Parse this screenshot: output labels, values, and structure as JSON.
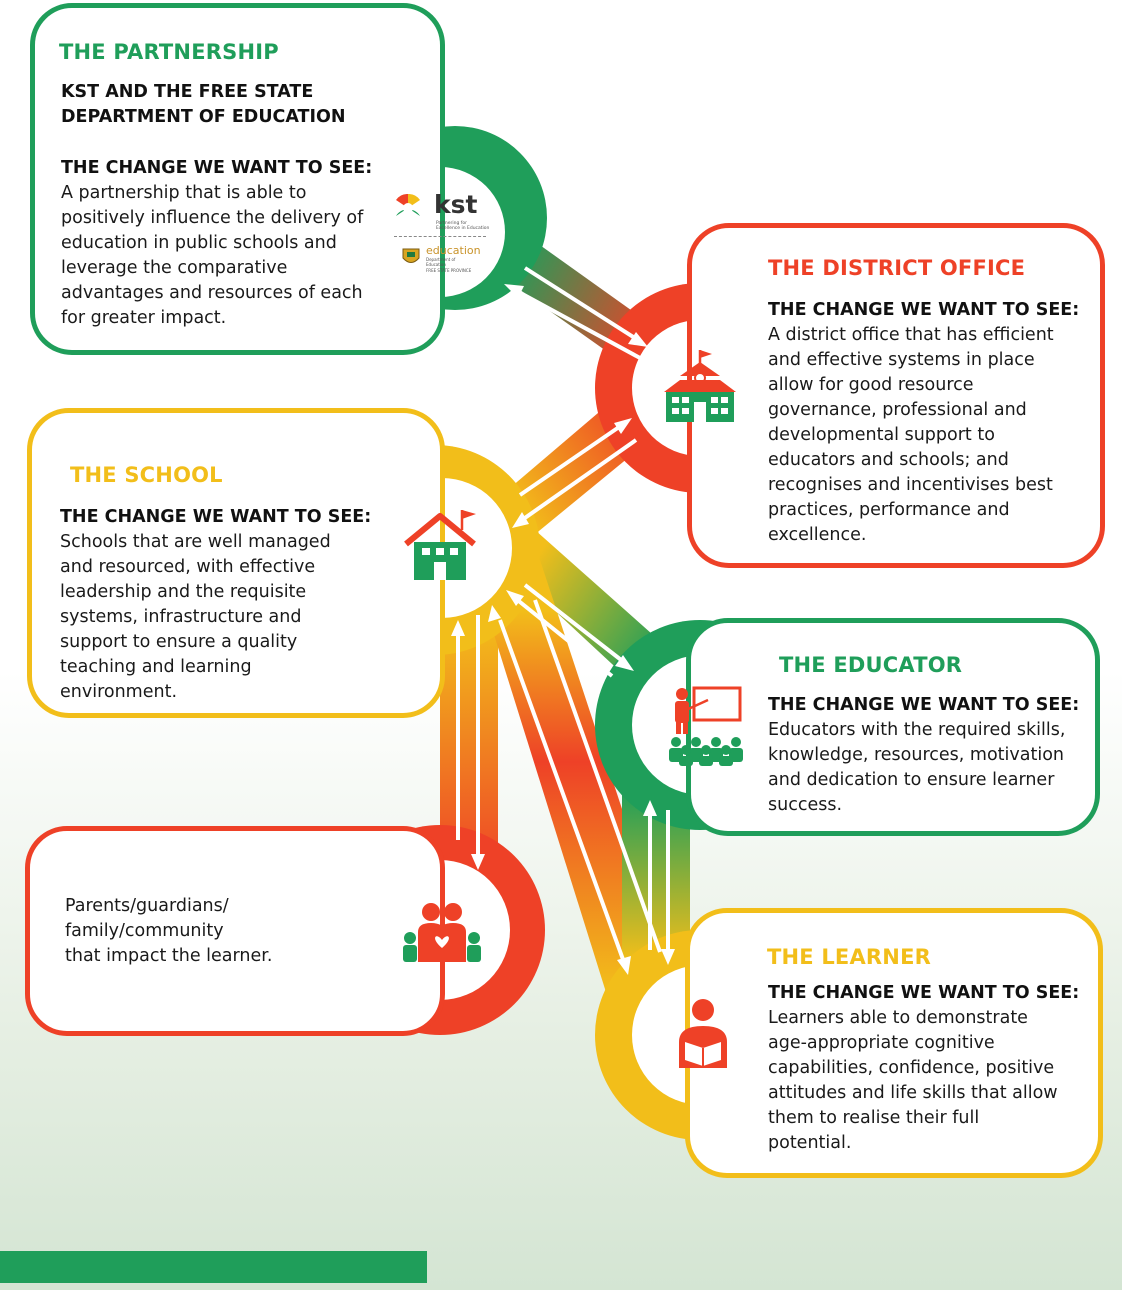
{
  "colors": {
    "green": "#1f9e5a",
    "red": "#ee4127",
    "yellow": "#f2be1a"
  },
  "partnership": {
    "title": "THE PARTNERSHIP",
    "subtitle": "KST AND THE FREE STATE\nDEPARTMENT OF EDUCATION",
    "change_heading": "THE CHANGE WE WANT TO SEE:",
    "change_text": "A partnership that is able to\npositively influence the delivery of\neducation in public schools and\nleverage the comparative\nadvantages and resources of each\nfor greater impact.",
    "logo": {
      "kst_wordmark": "kst",
      "kst_tagline": "Partnering for Excellence in Education",
      "education_wordmark": "education",
      "education_sub": "Department of Education",
      "province": "FREE STATE PROVINCE"
    }
  },
  "district_office": {
    "title": "THE DISTRICT OFFICE",
    "change_heading": "THE CHANGE WE WANT TO SEE:",
    "change_text": "A district office that has efficient\nand effective systems in place\nallow for good resource\ngovernance, professional and\ndevelopmental support to\neducators and schools; and\nrecognises and incentivises best\npractices, performance and\nexcellence.",
    "icon": "school-building-icon"
  },
  "school": {
    "title": "THE SCHOOL",
    "change_heading": "THE CHANGE WE WANT TO SEE:",
    "change_text": "Schools that are well managed\nand resourced, with effective\nleadership and the requisite\nsystems, infrastructure and\nsupport to ensure a quality\nteaching and learning\nenvironment.",
    "icon": "house-flag-icon"
  },
  "educator": {
    "title": "THE EDUCATOR",
    "change_heading": "THE CHANGE WE WANT TO SEE:",
    "change_text": "Educators with the required skills,\nknowledge, resources, motivation\nand dedication to ensure learner\nsuccess.",
    "icon": "teacher-classroom-icon"
  },
  "community": {
    "text": "Parents/guardians/\nfamily/community\nthat impact the learner.",
    "icon": "family-icon"
  },
  "learner": {
    "title": "THE LEARNER",
    "change_heading": "THE CHANGE WE WANT TO SEE:",
    "change_text": "Learners able to demonstrate\nage-appropriate cognitive\ncapabilities, confidence, positive\nattitudes and life skills that allow\nthem to realise their full\npotential.",
    "icon": "reading-learner-icon"
  }
}
